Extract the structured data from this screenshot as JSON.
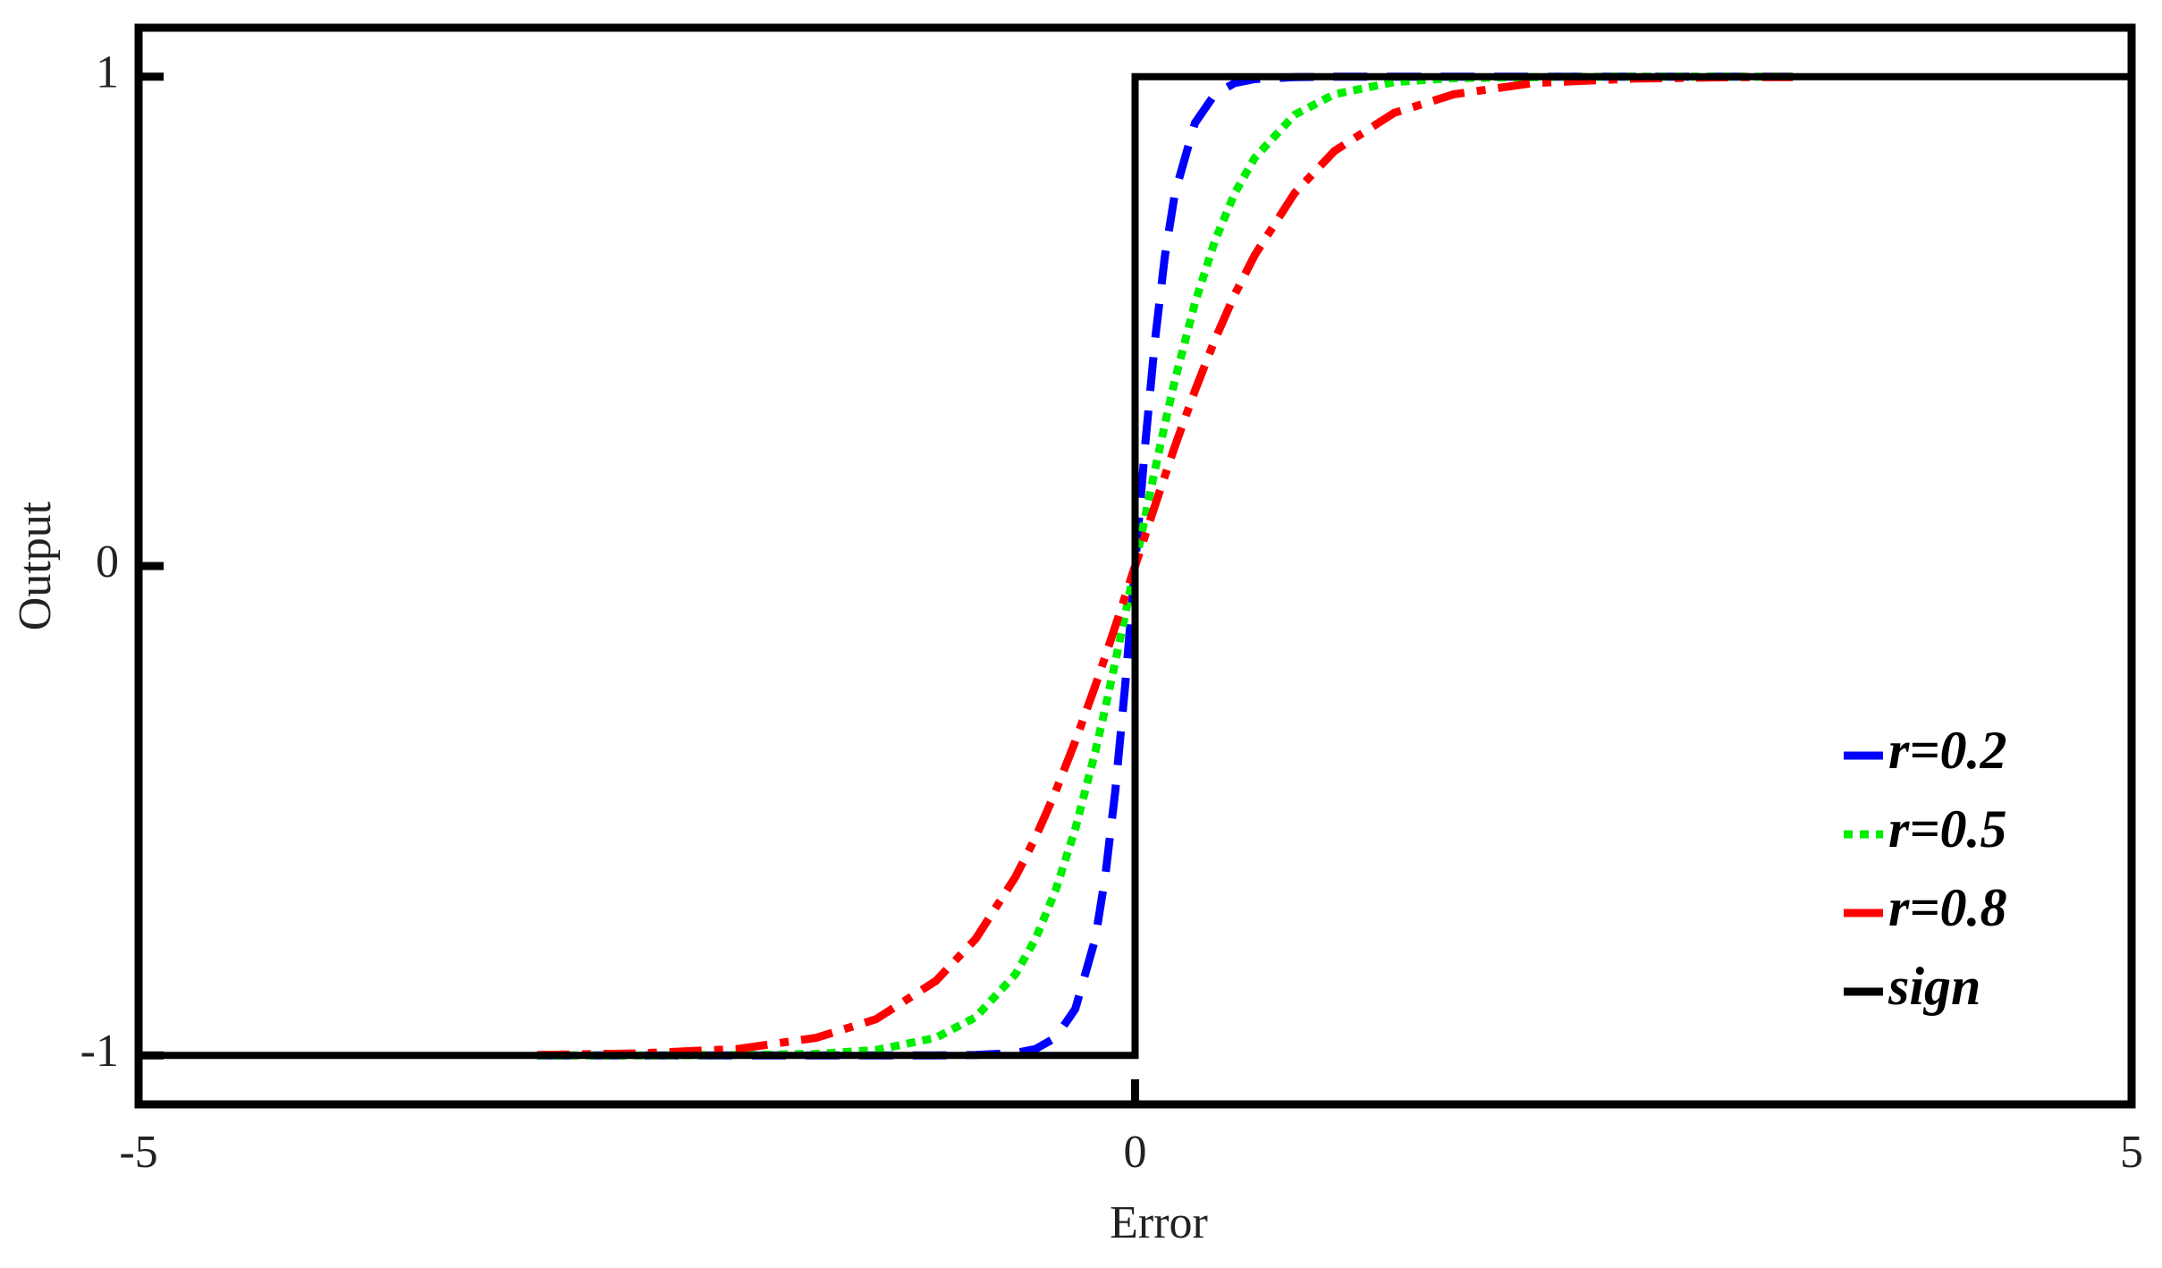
{
  "chart_data": {
    "type": "line",
    "xlabel": "Error",
    "ylabel": "Output",
    "xlim": [
      -5,
      5
    ],
    "ylim": [
      -1.1,
      1.1
    ],
    "xticks": [
      -5,
      0,
      5
    ],
    "yticks": [
      -1,
      0,
      1
    ],
    "grid": false,
    "legend": "lower right",
    "x": [
      -3,
      -2.5,
      -2,
      -1.6,
      -1.3,
      -1,
      -0.8,
      -0.6,
      -0.5,
      -0.4,
      -0.3,
      -0.2,
      -0.15,
      -0.1,
      -0.05,
      0,
      0.05,
      0.1,
      0.15,
      0.2,
      0.3,
      0.4,
      0.5,
      0.6,
      0.8,
      1,
      1.3,
      1.6,
      2,
      2.5,
      3,
      3.3
    ],
    "series": [
      {
        "name": "r=0.2",
        "color": "#0000ff",
        "style": "dashed",
        "values": [
          -1,
          -1,
          -1,
          -1,
          -1,
          -1,
          -0.999,
          -0.995,
          -0.987,
          -0.964,
          -0.905,
          -0.762,
          -0.635,
          -0.462,
          -0.245,
          0,
          0.245,
          0.462,
          0.635,
          0.762,
          0.905,
          0.964,
          0.987,
          0.995,
          0.999,
          1,
          1,
          1,
          1,
          1,
          1,
          1
        ]
      },
      {
        "name": "r=0.5",
        "color": "#00ee00",
        "style": "dotted",
        "values": [
          -1,
          -1,
          -0.999,
          -0.997,
          -0.989,
          -0.964,
          -0.922,
          -0.834,
          -0.762,
          -0.664,
          -0.537,
          -0.38,
          -0.291,
          -0.197,
          -0.1,
          0,
          0.1,
          0.197,
          0.291,
          0.38,
          0.537,
          0.664,
          0.762,
          0.834,
          0.922,
          0.964,
          0.989,
          0.997,
          0.999,
          1,
          1,
          1
        ]
      },
      {
        "name": "r=0.8",
        "color": "#ff0000",
        "style": "dashdot",
        "values": [
          -0.999,
          -0.996,
          -0.987,
          -0.964,
          -0.926,
          -0.848,
          -0.762,
          -0.635,
          -0.555,
          -0.462,
          -0.358,
          -0.245,
          -0.185,
          -0.124,
          -0.062,
          0,
          0.062,
          0.124,
          0.185,
          0.245,
          0.358,
          0.462,
          0.555,
          0.635,
          0.762,
          0.848,
          0.926,
          0.964,
          0.987,
          0.996,
          0.999,
          0.999
        ]
      },
      {
        "name": "sign",
        "color": "#000000",
        "style": "solid",
        "x": [
          -5,
          0,
          0,
          5
        ],
        "values": [
          -1,
          -1,
          1,
          1
        ]
      }
    ]
  }
}
